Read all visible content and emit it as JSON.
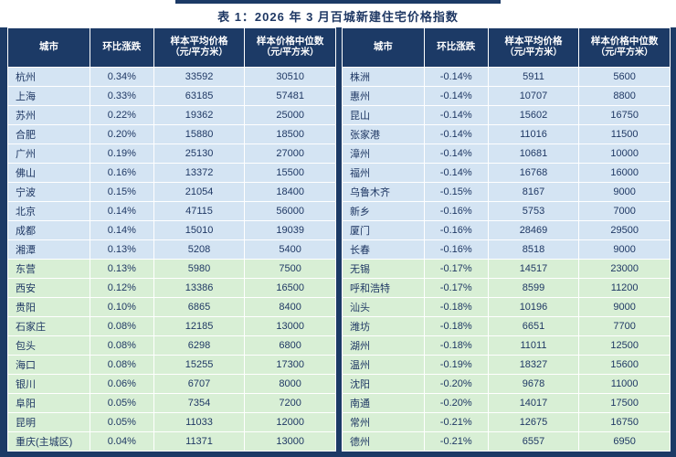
{
  "title": "表 1：2026 年 3 月百城新建住宅价格指数",
  "columns": [
    {
      "label": "城市",
      "sub": ""
    },
    {
      "label": "环比涨跌",
      "sub": ""
    },
    {
      "label": "样本平均价格",
      "sub": "（元/平方米）"
    },
    {
      "label": "样本价格中位数",
      "sub": "（元/平方米）"
    }
  ],
  "row_group_split": 10,
  "colors": {
    "header_bg": "#1c3a66",
    "row_blue": "#d4e4f3",
    "row_green": "#d8efd5",
    "text": "#1f3864"
  },
  "tables": [
    {
      "name": "left",
      "rows": [
        [
          "杭州",
          "0.34%",
          "33592",
          "30510"
        ],
        [
          "上海",
          "0.33%",
          "63185",
          "57481"
        ],
        [
          "苏州",
          "0.22%",
          "19362",
          "25000"
        ],
        [
          "合肥",
          "0.20%",
          "15880",
          "18500"
        ],
        [
          "广州",
          "0.19%",
          "25130",
          "27000"
        ],
        [
          "佛山",
          "0.16%",
          "13372",
          "15500"
        ],
        [
          "宁波",
          "0.15%",
          "21054",
          "18400"
        ],
        [
          "北京",
          "0.14%",
          "47115",
          "56000"
        ],
        [
          "成都",
          "0.14%",
          "15010",
          "19039"
        ],
        [
          "湘潭",
          "0.13%",
          "5208",
          "5400"
        ],
        [
          "东营",
          "0.13%",
          "5980",
          "7500"
        ],
        [
          "西安",
          "0.12%",
          "13386",
          "16500"
        ],
        [
          "贵阳",
          "0.10%",
          "6865",
          "8400"
        ],
        [
          "石家庄",
          "0.08%",
          "12185",
          "13000"
        ],
        [
          "包头",
          "0.08%",
          "6298",
          "6800"
        ],
        [
          "海口",
          "0.08%",
          "15255",
          "17300"
        ],
        [
          "银川",
          "0.06%",
          "6707",
          "8000"
        ],
        [
          "阜阳",
          "0.05%",
          "7354",
          "7200"
        ],
        [
          "昆明",
          "0.05%",
          "11033",
          "12000"
        ],
        [
          "重庆(主城区)",
          "0.04%",
          "11371",
          "13000"
        ]
      ]
    },
    {
      "name": "right",
      "rows": [
        [
          "株洲",
          "-0.14%",
          "5911",
          "5600"
        ],
        [
          "惠州",
          "-0.14%",
          "10707",
          "8800"
        ],
        [
          "昆山",
          "-0.14%",
          "15602",
          "16750"
        ],
        [
          "张家港",
          "-0.14%",
          "11016",
          "11500"
        ],
        [
          "漳州",
          "-0.14%",
          "10681",
          "10000"
        ],
        [
          "福州",
          "-0.14%",
          "16768",
          "16000"
        ],
        [
          "乌鲁木齐",
          "-0.15%",
          "8167",
          "9000"
        ],
        [
          "新乡",
          "-0.16%",
          "5753",
          "7000"
        ],
        [
          "厦门",
          "-0.16%",
          "28469",
          "29500"
        ],
        [
          "长春",
          "-0.16%",
          "8518",
          "9000"
        ],
        [
          "无锡",
          "-0.17%",
          "14517",
          "23000"
        ],
        [
          "呼和浩特",
          "-0.17%",
          "8599",
          "11200"
        ],
        [
          "汕头",
          "-0.18%",
          "10196",
          "9000"
        ],
        [
          "潍坊",
          "-0.18%",
          "6651",
          "7700"
        ],
        [
          "湖州",
          "-0.18%",
          "11011",
          "12500"
        ],
        [
          "温州",
          "-0.19%",
          "18327",
          "15600"
        ],
        [
          "沈阳",
          "-0.20%",
          "9678",
          "11000"
        ],
        [
          "南通",
          "-0.20%",
          "14017",
          "17500"
        ],
        [
          "常州",
          "-0.21%",
          "12675",
          "16750"
        ],
        [
          "德州",
          "-0.21%",
          "6557",
          "6950"
        ]
      ]
    }
  ]
}
